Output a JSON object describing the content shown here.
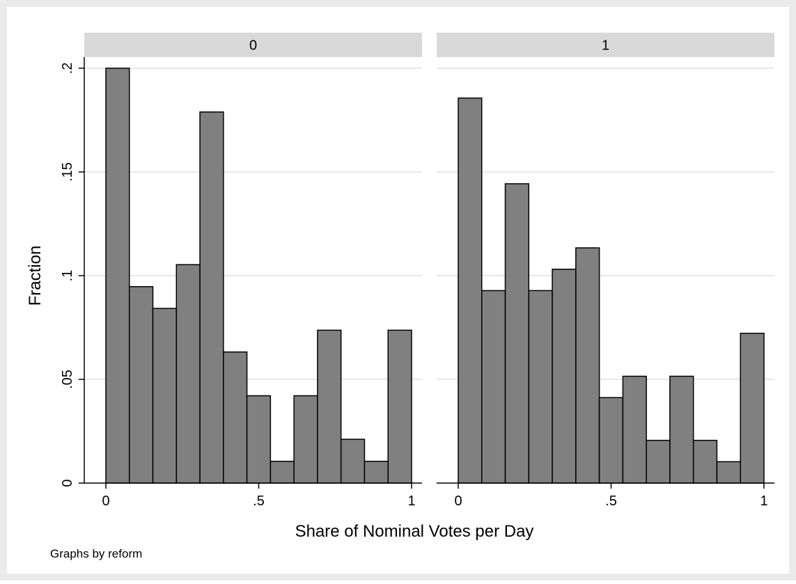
{
  "chart_data": {
    "type": "bar",
    "subtype": "histogram",
    "xlabel": "Share of Nominal Votes per Day",
    "ylabel": "Fraction",
    "note": "Graphs by reform",
    "xlim": [
      0,
      1
    ],
    "ylim": [
      0,
      0.2
    ],
    "xticks": [
      0,
      0.5,
      1
    ],
    "xtick_labels": [
      "0",
      ".5",
      "1"
    ],
    "yticks": [
      0,
      0.05,
      0.1,
      0.15,
      0.2
    ],
    "ytick_labels": [
      "0",
      ".05",
      ".1",
      ".15",
      ".2"
    ],
    "grid": true,
    "bin_width": 0.0769,
    "bin_starts": [
      0,
      0.0769,
      0.1538,
      0.2308,
      0.3077,
      0.3846,
      0.4615,
      0.5385,
      0.6154,
      0.6923,
      0.7692,
      0.8462,
      0.9231
    ],
    "panels": [
      {
        "label": "0",
        "values": [
          0.2,
          0.0947,
          0.0842,
          0.1053,
          0.1789,
          0.0632,
          0.0421,
          0.0105,
          0.0421,
          0.0737,
          0.0211,
          0.0105,
          0.0737
        ]
      },
      {
        "label": "1",
        "values": [
          0.1856,
          0.0928,
          0.1443,
          0.0928,
          0.1031,
          0.1134,
          0.0412,
          0.0515,
          0.0206,
          0.0515,
          0.0206,
          0.0103,
          0.0722
        ]
      }
    ],
    "colors": {
      "bar_fill": "#808080",
      "bar_stroke": "#000000",
      "panel_header": "#d9d9d9",
      "background": "#ebebeb",
      "plot_area": "#ffffff",
      "grid": "#e8e8e8"
    }
  }
}
